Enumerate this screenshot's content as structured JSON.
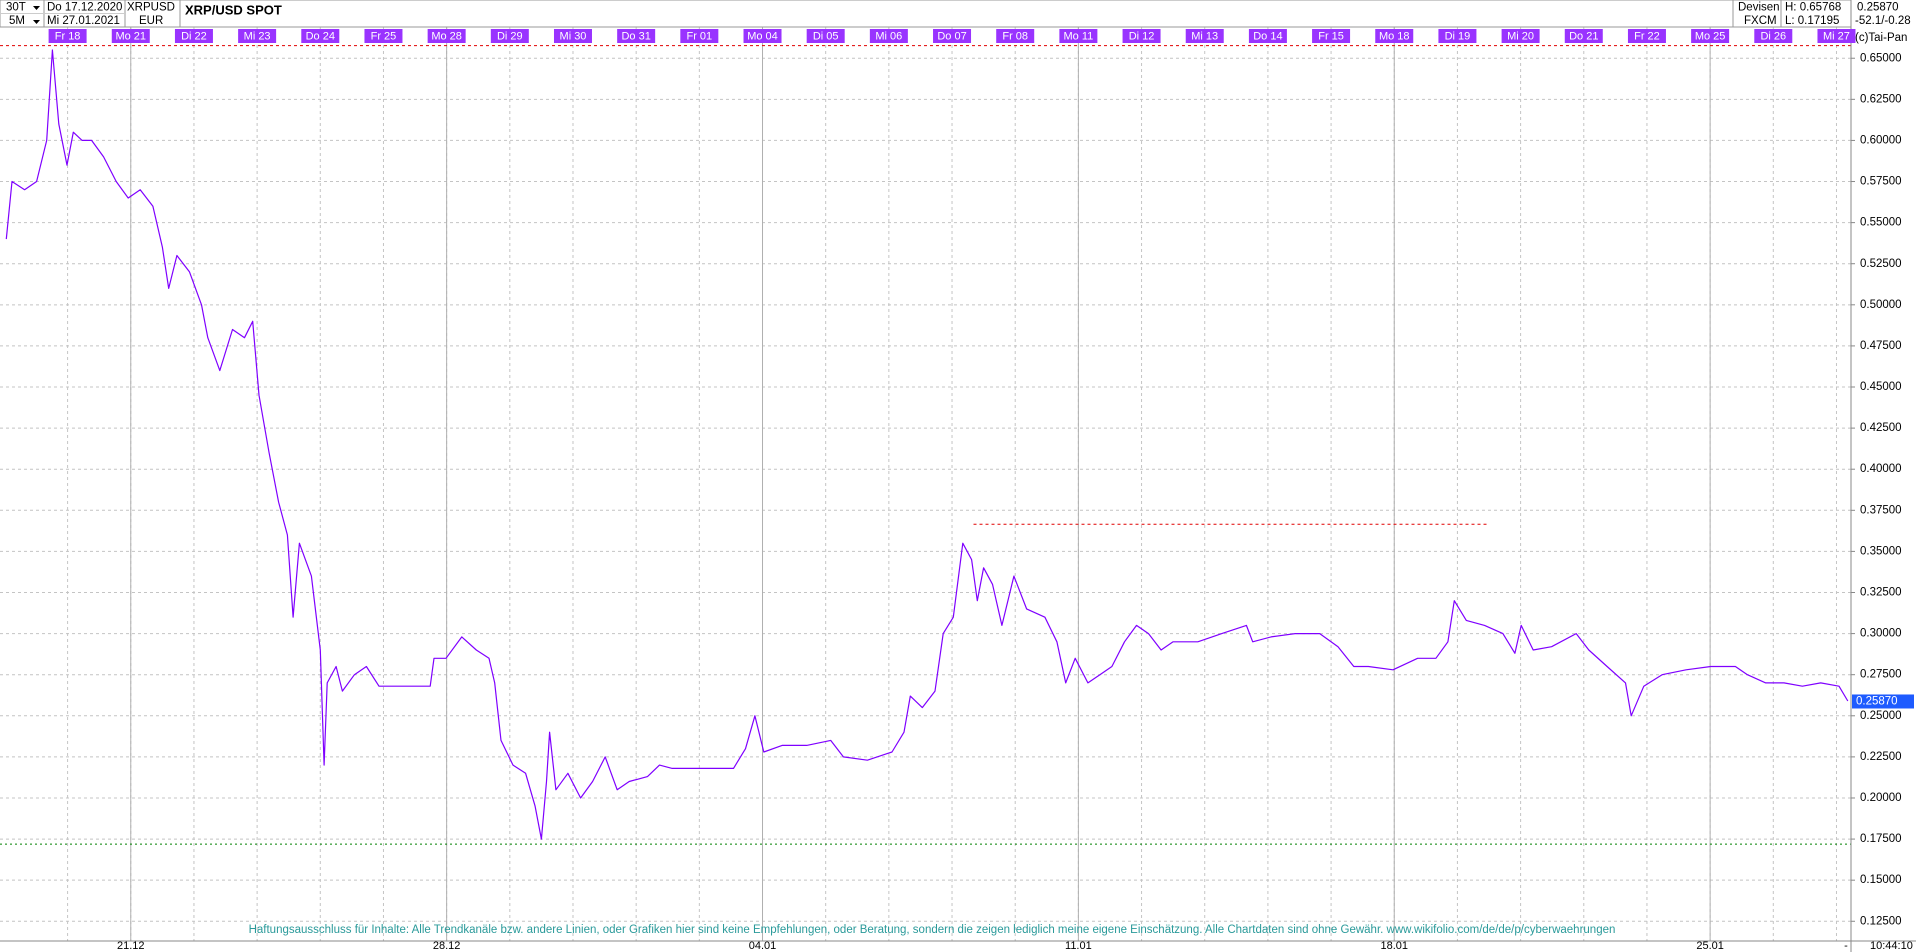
{
  "chart_data": {
    "type": "line",
    "title": "XRP/USD SPOT",
    "header": {
      "interval": "30T",
      "from_date": "Do 17.12.2020",
      "symbol": "XRPUSD",
      "resolution": "5M",
      "to_date": "Mi 27.01.2021",
      "currency": "EUR",
      "group": "Devisen",
      "high": "H: 0.65768",
      "last": "0.25870",
      "source": "FXCM",
      "low": "L: 0.17195",
      "change": "-52.1/-0.28",
      "copyright": "(c)Tai-Pan"
    },
    "disclaimer": "Haftungsausschluss für Inhalte: Alle Trendkanäle bzw. andere Linien, oder Grafiken hier sind keine Empfehlungen, oder Beratung, sondern die zeigen lediglich meine eigene Einschätzung. Alle Chartdaten sind ohne Gewähr.  www.wikifolio.com/de/de/p/cyberwaehrungen",
    "time": "10:44:10",
    "corner": "-",
    "color": "#7f00ff",
    "grid": true,
    "x": [
      -0.97,
      -0.88,
      -0.68,
      -0.49,
      -0.33,
      -0.24,
      -0.14,
      -0.01,
      0.09,
      0.23,
      0.38,
      0.57,
      0.77,
      0.96,
      1.15,
      1.35,
      1.5,
      1.6,
      1.73,
      1.93,
      2.12,
      2.22,
      2.41,
      2.61,
      2.8,
      2.93,
      3.03,
      3.19,
      3.34,
      3.48,
      3.57,
      3.67,
      3.86,
      4.0,
      4.06,
      4.11,
      4.25,
      4.35,
      4.54,
      4.73,
      4.93,
      5.74,
      5.8,
      5.99,
      6.24,
      6.47,
      6.67,
      6.76,
      6.86,
      7.05,
      7.25,
      7.4,
      7.5,
      7.58,
      7.63,
      7.73,
      7.92,
      8.12,
      8.31,
      8.51,
      8.7,
      8.89,
      9.18,
      9.37,
      9.57,
      10.54,
      10.73,
      10.88,
      11.02,
      11.31,
      11.7,
      12.08,
      12.28,
      12.66,
      13.05,
      13.24,
      13.34,
      13.53,
      13.73,
      13.86,
      14.02,
      14.17,
      14.31,
      14.4,
      14.5,
      14.64,
      14.79,
      14.98,
      15.18,
      15.47,
      15.66,
      15.8,
      15.95,
      16.15,
      16.34,
      16.53,
      16.73,
      16.92,
      17.11,
      17.31,
      17.5,
      17.89,
      18.27,
      18.66,
      18.76,
      19.05,
      19.43,
      19.82,
      20.11,
      20.36,
      20.59,
      20.98,
      21.37,
      21.66,
      21.85,
      21.95,
      22.14,
      22.43,
      22.72,
      22.91,
      23.01,
      23.2,
      23.49,
      23.88,
      24.08,
      24.37,
      24.66,
      24.75,
      24.95,
      25.24,
      25.62,
      26.01,
      26.4,
      26.59,
      26.88,
      27.17,
      27.46,
      27.75,
      28.04,
      28.18
    ],
    "values": [
      0.54,
      0.575,
      0.57,
      0.575,
      0.6,
      0.655,
      0.61,
      0.585,
      0.605,
      0.6,
      0.6,
      0.59,
      0.575,
      0.565,
      0.57,
      0.56,
      0.535,
      0.51,
      0.53,
      0.52,
      0.5,
      0.48,
      0.46,
      0.485,
      0.48,
      0.49,
      0.445,
      0.41,
      0.38,
      0.36,
      0.31,
      0.355,
      0.335,
      0.29,
      0.22,
      0.27,
      0.28,
      0.265,
      0.275,
      0.28,
      0.268,
      0.268,
      0.285,
      0.285,
      0.298,
      0.29,
      0.285,
      0.27,
      0.235,
      0.22,
      0.215,
      0.195,
      0.175,
      0.21,
      0.24,
      0.205,
      0.215,
      0.2,
      0.21,
      0.225,
      0.205,
      0.21,
      0.213,
      0.22,
      0.218,
      0.218,
      0.23,
      0.25,
      0.228,
      0.232,
      0.232,
      0.235,
      0.225,
      0.223,
      0.228,
      0.24,
      0.262,
      0.255,
      0.265,
      0.3,
      0.31,
      0.355,
      0.345,
      0.32,
      0.34,
      0.33,
      0.305,
      0.335,
      0.315,
      0.31,
      0.295,
      0.27,
      0.285,
      0.27,
      0.275,
      0.28,
      0.295,
      0.305,
      0.3,
      0.29,
      0.295,
      0.295,
      0.3,
      0.305,
      0.295,
      0.298,
      0.3,
      0.3,
      0.292,
      0.28,
      0.28,
      0.278,
      0.285,
      0.285,
      0.295,
      0.32,
      0.308,
      0.305,
      0.3,
      0.288,
      0.305,
      0.29,
      0.292,
      0.3,
      0.29,
      0.28,
      0.27,
      0.25,
      0.268,
      0.275,
      0.278,
      0.28,
      0.28,
      0.275,
      0.27,
      0.27,
      0.268,
      0.27,
      0.268,
      0.259
    ],
    "xlim": [
      -1.07,
      28.23
    ],
    "ylim": [
      0.113,
      0.669
    ],
    "day_ticks": [
      {
        "value": 0,
        "label": "Fr 18"
      },
      {
        "value": 1,
        "label": "Mo 21"
      },
      {
        "value": 2,
        "label": "Di 22"
      },
      {
        "value": 3,
        "label": "Mi 23"
      },
      {
        "value": 4,
        "label": "Do 24"
      },
      {
        "value": 5,
        "label": "Fr 25"
      },
      {
        "value": 6,
        "label": "Mo 28"
      },
      {
        "value": 7,
        "label": "Di 29"
      },
      {
        "value": 8,
        "label": "Mi 30"
      },
      {
        "value": 9,
        "label": "Do 31"
      },
      {
        "value": 10,
        "label": "Fr 01"
      },
      {
        "value": 11,
        "label": "Mo 04"
      },
      {
        "value": 12,
        "label": "Di 05"
      },
      {
        "value": 13,
        "label": "Mi 06"
      },
      {
        "value": 14,
        "label": "Do 07"
      },
      {
        "value": 15,
        "label": "Fr 08"
      },
      {
        "value": 16,
        "label": "Mo 11"
      },
      {
        "value": 17,
        "label": "Di 12"
      },
      {
        "value": 18,
        "label": "Mi 13"
      },
      {
        "value": 19,
        "label": "Do 14"
      },
      {
        "value": 20,
        "label": "Fr 15"
      },
      {
        "value": 21,
        "label": "Mo 18"
      },
      {
        "value": 22,
        "label": "Di 19"
      },
      {
        "value": 23,
        "label": "Mi 20"
      },
      {
        "value": 24,
        "label": "Do 21"
      },
      {
        "value": 25,
        "label": "Fr 22"
      },
      {
        "value": 26,
        "label": "Mo 25"
      },
      {
        "value": 27,
        "label": "Di 26"
      },
      {
        "value": 28,
        "label": "Mi 27"
      }
    ],
    "xticks": [
      {
        "value": 1,
        "label": "21.12"
      },
      {
        "value": 6,
        "label": "28.12"
      },
      {
        "value": 11,
        "label": "04.01"
      },
      {
        "value": 16,
        "label": "11.01"
      },
      {
        "value": 21,
        "label": "18.01"
      },
      {
        "value": 26,
        "label": "25.01"
      }
    ],
    "yticks": [
      {
        "value": 0.125,
        "label": "0.12500"
      },
      {
        "value": 0.15,
        "label": "0.15000"
      },
      {
        "value": 0.175,
        "label": "0.17500"
      },
      {
        "value": 0.2,
        "label": "0.20000"
      },
      {
        "value": 0.225,
        "label": "0.22500"
      },
      {
        "value": 0.25,
        "label": "0.25000"
      },
      {
        "value": 0.275,
        "label": "0.27500"
      },
      {
        "value": 0.3,
        "label": "0.30000"
      },
      {
        "value": 0.325,
        "label": "0.32500"
      },
      {
        "value": 0.35,
        "label": "0.35000"
      },
      {
        "value": 0.375,
        "label": "0.37500"
      },
      {
        "value": 0.4,
        "label": "0.40000"
      },
      {
        "value": 0.425,
        "label": "0.42500"
      },
      {
        "value": 0.45,
        "label": "0.45000"
      },
      {
        "value": 0.475,
        "label": "0.47500"
      },
      {
        "value": 0.5,
        "label": "0.50000"
      },
      {
        "value": 0.525,
        "label": "0.52500"
      },
      {
        "value": 0.55,
        "label": "0.55000"
      },
      {
        "value": 0.575,
        "label": "0.57500"
      },
      {
        "value": 0.6,
        "label": "0.60000"
      },
      {
        "value": 0.625,
        "label": "0.62500"
      },
      {
        "value": 0.65,
        "label": "0.65000"
      }
    ],
    "last_value": {
      "value": 0.2587,
      "label": "0.25870"
    },
    "hlines": [
      {
        "value": 0.65768,
        "color": "#e00000",
        "dash": "3,3"
      },
      {
        "value": 0.17195,
        "color": "#008000",
        "dash": "2,3"
      },
      {
        "value": 0.3665,
        "xlim": [
          14.34,
          22.49
        ],
        "color": "#e00000",
        "dash": "3,3"
      }
    ]
  }
}
